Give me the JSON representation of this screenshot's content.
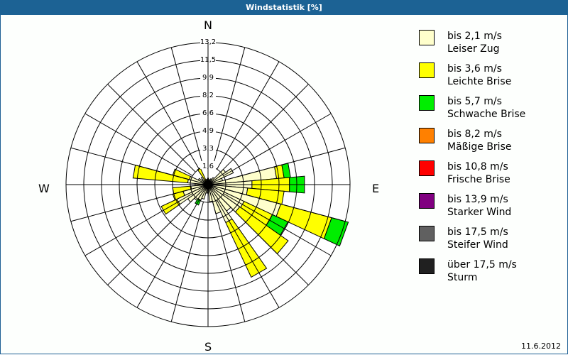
{
  "title": "Windstatistik [%]",
  "date": "11.6.2012",
  "directions": {
    "n": "N",
    "e": "E",
    "s": "S",
    "w": "W"
  },
  "legend": [
    {
      "line1": "bis 2,1 m/s",
      "line2": "Leiser Zug",
      "color": "#ffffcc"
    },
    {
      "line1": "bis 3,6 m/s",
      "line2": "Leichte Brise",
      "color": "#ffff00"
    },
    {
      "line1": "bis 5,7 m/s",
      "line2": "Schwache Brise",
      "color": "#00ee00"
    },
    {
      "line1": "bis 8,2 m/s",
      "line2": "Mäßige Brise",
      "color": "#ff8000"
    },
    {
      "line1": "bis 10,8 m/s",
      "line2": "Frische Brise",
      "color": "#ff0000"
    },
    {
      "line1": "bis 13,9 m/s",
      "line2": "Starker Wind",
      "color": "#800080"
    },
    {
      "line1": "bis 17,5 m/s",
      "line2": "Steifer Wind",
      "color": "#606060"
    },
    {
      "line1": "über 17,5 m/s",
      "line2": "Sturm",
      "color": "#202020"
    }
  ],
  "chart_data": {
    "type": "wind-rose",
    "title": "Windstatistik [%]",
    "rmax": 13.2,
    "ring_ticks": [
      "1,6",
      "3,3",
      "4,9",
      "6,6",
      "8,2",
      "9,9",
      "11,5",
      "13,2"
    ],
    "ring_values": [
      1.65,
      3.3,
      4.95,
      6.6,
      8.25,
      9.9,
      11.55,
      13.2
    ],
    "spoke_step_deg": 15,
    "sector_width_deg": 10,
    "classes": [
      "bis 2,1 m/s",
      "bis 3,6 m/s",
      "bis 5,7 m/s",
      "bis 8,2 m/s",
      "bis 10,8 m/s",
      "bis 13,9 m/s",
      "bis 17,5 m/s",
      "über 17,5 m/s"
    ],
    "sectors": [
      {
        "dir": 0,
        "values": [
          0.6,
          0,
          0
        ]
      },
      {
        "dir": 10,
        "values": [
          0.4,
          0,
          0
        ]
      },
      {
        "dir": 20,
        "values": [
          0.5,
          0,
          0
        ]
      },
      {
        "dir": 30,
        "values": [
          0.6,
          0,
          0
        ]
      },
      {
        "dir": 40,
        "values": [
          0.8,
          0,
          0
        ]
      },
      {
        "dir": 50,
        "values": [
          2.0,
          0,
          0
        ]
      },
      {
        "dir": 60,
        "values": [
          2.6,
          0,
          0
        ]
      },
      {
        "dir": 70,
        "values": [
          1.4,
          0,
          0
        ]
      },
      {
        "dir": 80,
        "values": [
          6.4,
          0.7,
          0.6
        ]
      },
      {
        "dir": 90,
        "values": [
          4.1,
          3.5,
          1.4
        ]
      },
      {
        "dir": 100,
        "values": [
          3.7,
          3.4,
          0
        ]
      },
      {
        "dir": 110,
        "values": [
          7.0,
          4.9,
          1.6
        ]
      },
      {
        "dir": 120,
        "values": [
          3.7,
          2.9,
          1.6
        ]
      },
      {
        "dir": 130,
        "values": [
          3.6,
          5.5,
          0
        ]
      },
      {
        "dir": 140,
        "values": [
          3.0,
          0,
          0
        ]
      },
      {
        "dir": 150,
        "values": [
          3.9,
          5.6,
          0
        ]
      },
      {
        "dir": 160,
        "values": [
          2.8,
          0,
          0
        ]
      },
      {
        "dir": 170,
        "values": [
          1.6,
          0,
          0
        ]
      },
      {
        "dir": 180,
        "values": [
          0.6,
          0,
          0
        ]
      },
      {
        "dir": 190,
        "values": [
          0.8,
          0,
          0
        ]
      },
      {
        "dir": 200,
        "values": [
          1.4,
          0,
          0
        ]
      },
      {
        "dir": 210,
        "values": [
          1.6,
          0,
          0.5
        ]
      },
      {
        "dir": 220,
        "values": [
          1.8,
          0,
          0
        ]
      },
      {
        "dir": 230,
        "values": [
          2.3,
          0,
          0
        ]
      },
      {
        "dir": 240,
        "values": [
          3.2,
          1.6,
          0
        ]
      },
      {
        "dir": 250,
        "values": [
          2.4,
          1.0,
          0
        ]
      },
      {
        "dir": 260,
        "values": [
          1.6,
          1.7,
          0
        ]
      },
      {
        "dir": 270,
        "values": [
          1.2,
          0,
          0
        ]
      },
      {
        "dir": 280,
        "values": [
          1.9,
          5.1,
          0
        ]
      },
      {
        "dir": 290,
        "values": [
          1.8,
          1.6,
          0
        ]
      },
      {
        "dir": 300,
        "values": [
          1.0,
          0,
          0
        ]
      },
      {
        "dir": 310,
        "values": [
          0.7,
          0,
          0
        ]
      },
      {
        "dir": 320,
        "values": [
          0.9,
          0,
          0
        ]
      },
      {
        "dir": 330,
        "values": [
          0.4,
          1.3,
          0
        ]
      },
      {
        "dir": 340,
        "values": [
          0.5,
          0,
          0
        ]
      },
      {
        "dir": 350,
        "values": [
          0.5,
          0,
          0
        ]
      }
    ]
  }
}
